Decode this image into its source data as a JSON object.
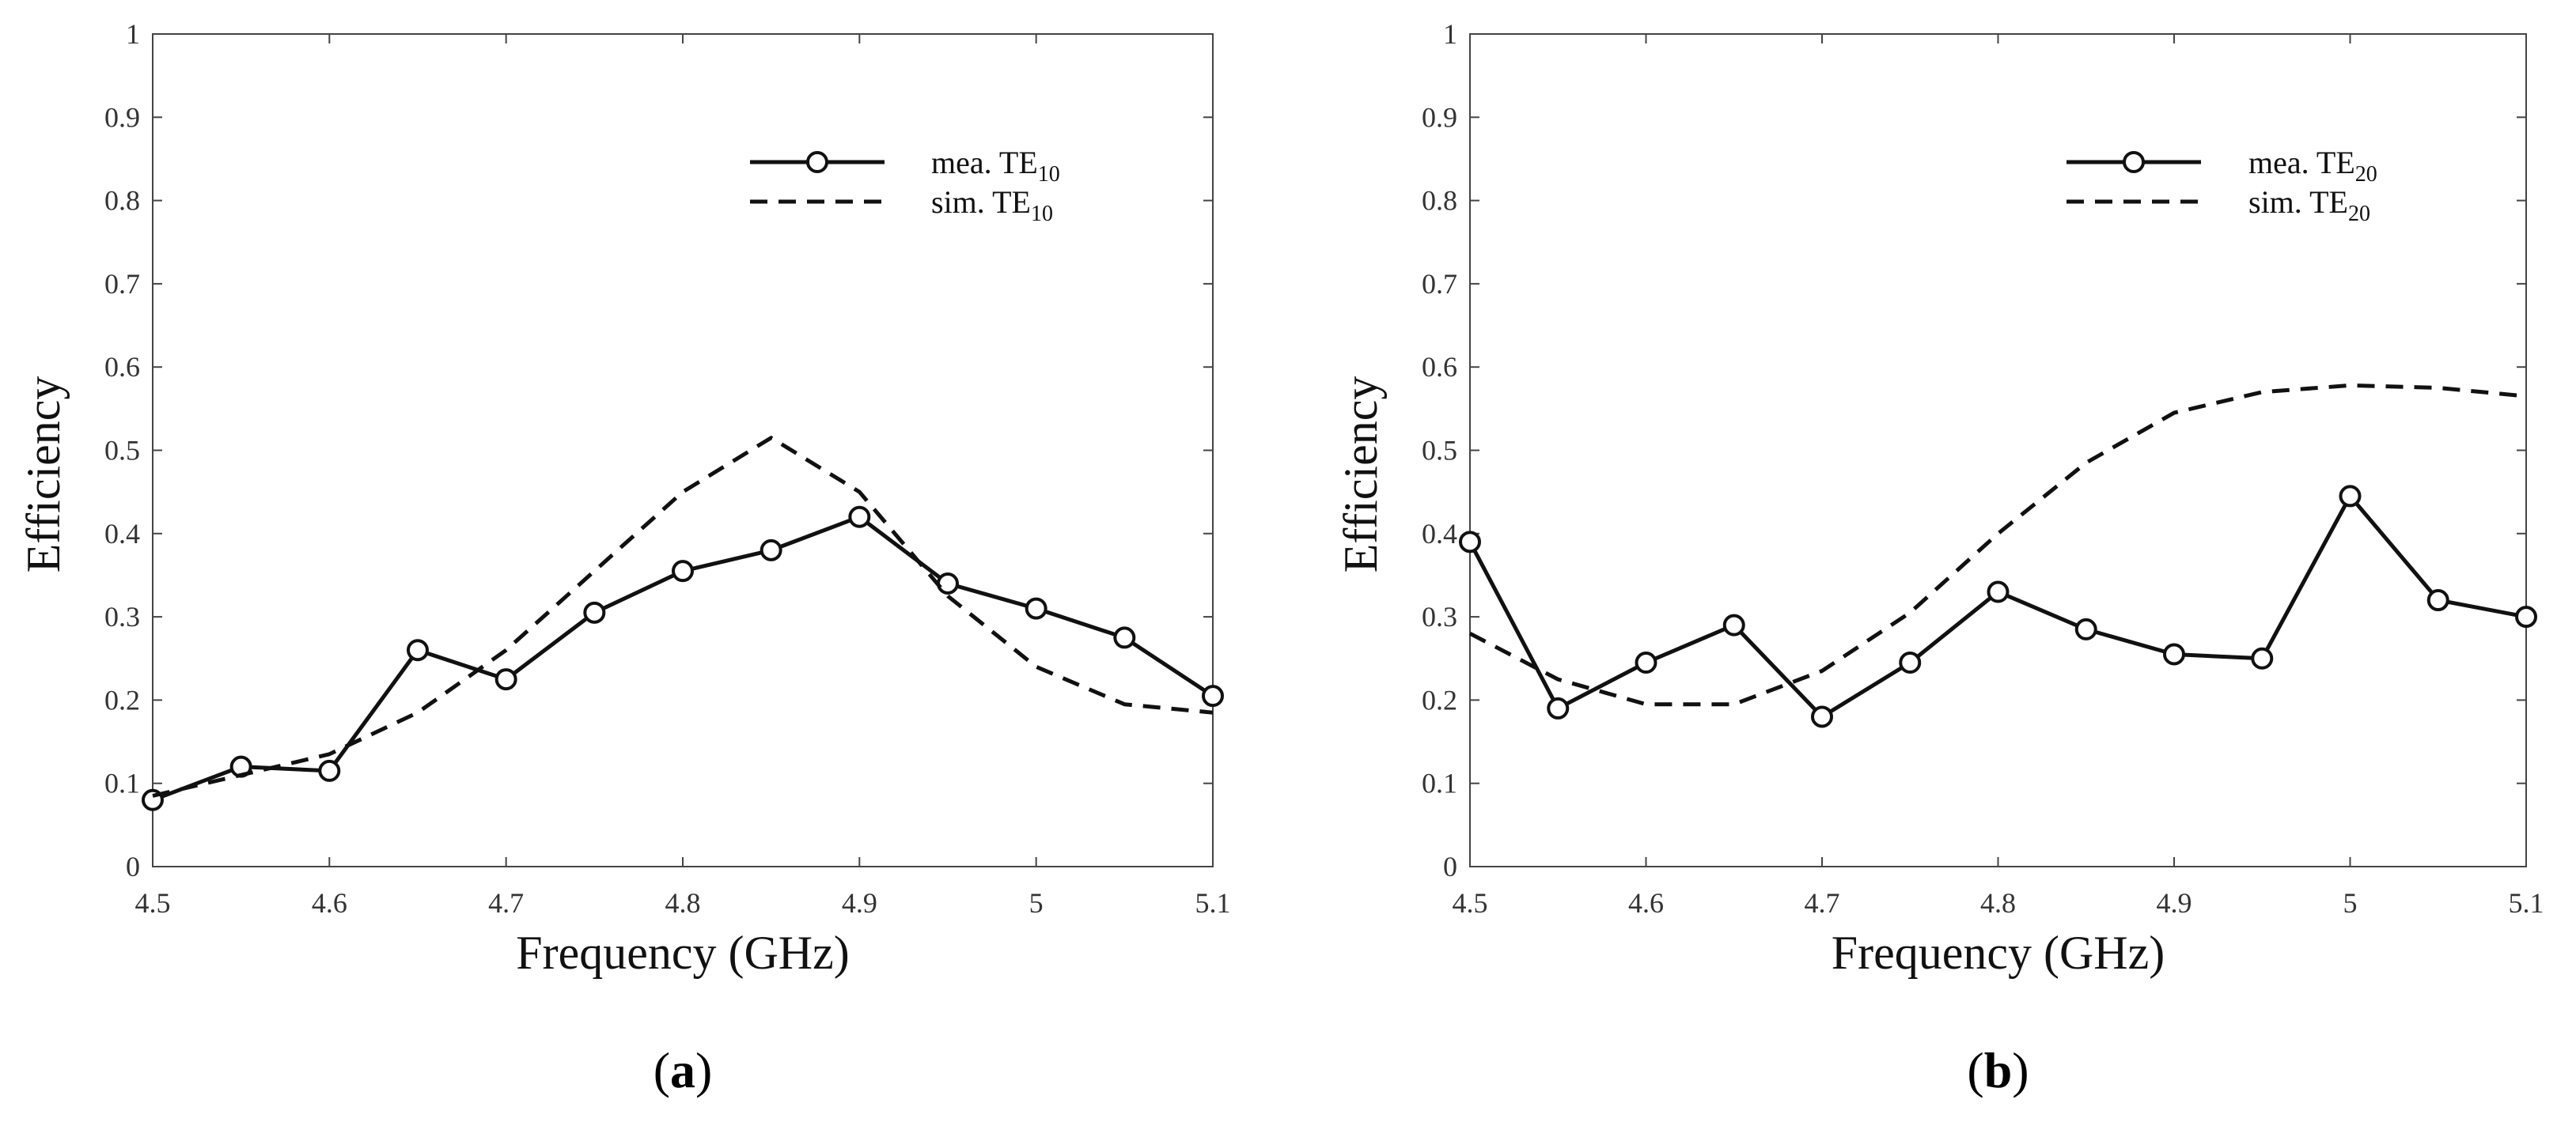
{
  "chart_data": [
    {
      "type": "line",
      "panel_label": "a",
      "xlabel": "Frequency (GHz)",
      "ylabel": "Efficiency",
      "xlim": [
        4.5,
        5.1
      ],
      "ylim": [
        0,
        1
      ],
      "xticks": [
        4.5,
        4.6,
        4.7,
        4.8,
        4.9,
        5,
        5.1
      ],
      "xtick_labels": [
        "4.5",
        "4.6",
        "4.7",
        "4.8",
        "4.9",
        "5",
        "5.1"
      ],
      "yticks": [
        0,
        0.1,
        0.2,
        0.3,
        0.4,
        0.5,
        0.6,
        0.7,
        0.8,
        0.9,
        1
      ],
      "ytick_labels": [
        "0",
        "0.1",
        "0.2",
        "0.3",
        "0.4",
        "0.5",
        "0.6",
        "0.7",
        "0.8",
        "0.9",
        "1"
      ],
      "legend_position": "top-right",
      "series": [
        {
          "name": "mea. TE10",
          "label_main": "mea. TE",
          "label_sub": "10",
          "style": "solid-circle",
          "x": [
            4.5,
            4.55,
            4.6,
            4.65,
            4.7,
            4.75,
            4.8,
            4.85,
            4.9,
            4.95,
            5.0,
            5.05,
            5.1
          ],
          "y": [
            0.08,
            0.12,
            0.115,
            0.26,
            0.225,
            0.305,
            0.355,
            0.38,
            0.42,
            0.34,
            0.31,
            0.275,
            0.205
          ]
        },
        {
          "name": "sim. TE10",
          "label_main": "sim. TE",
          "label_sub": "10",
          "style": "dashed",
          "x": [
            4.5,
            4.55,
            4.6,
            4.65,
            4.7,
            4.75,
            4.8,
            4.85,
            4.9,
            4.95,
            5.0,
            5.05,
            5.1
          ],
          "y": [
            0.085,
            0.11,
            0.135,
            0.185,
            0.26,
            0.355,
            0.45,
            0.515,
            0.45,
            0.325,
            0.24,
            0.195,
            0.185
          ]
        }
      ]
    },
    {
      "type": "line",
      "panel_label": "b",
      "xlabel": "Frequency (GHz)",
      "ylabel": "Efficiency",
      "xlim": [
        4.5,
        5.1
      ],
      "ylim": [
        0,
        1
      ],
      "xticks": [
        4.5,
        4.6,
        4.7,
        4.8,
        4.9,
        5,
        5.1
      ],
      "xtick_labels": [
        "4.5",
        "4.6",
        "4.7",
        "4.8",
        "4.9",
        "5",
        "5.1"
      ],
      "yticks": [
        0,
        0.1,
        0.2,
        0.3,
        0.4,
        0.5,
        0.6,
        0.7,
        0.8,
        0.9,
        1
      ],
      "ytick_labels": [
        "0",
        "0.1",
        "0.2",
        "0.3",
        "0.4",
        "0.5",
        "0.6",
        "0.7",
        "0.8",
        "0.9",
        "1"
      ],
      "legend_position": "top-right",
      "series": [
        {
          "name": "mea. TE20",
          "label_main": "mea. TE",
          "label_sub": "20",
          "style": "solid-circle",
          "x": [
            4.5,
            4.55,
            4.6,
            4.65,
            4.7,
            4.75,
            4.8,
            4.85,
            4.9,
            4.95,
            5.0,
            5.05,
            5.1
          ],
          "y": [
            0.39,
            0.19,
            0.245,
            0.29,
            0.18,
            0.245,
            0.33,
            0.285,
            0.255,
            0.25,
            0.445,
            0.32,
            0.3
          ]
        },
        {
          "name": "sim. TE20",
          "label_main": "sim. TE",
          "label_sub": "20",
          "style": "dashed",
          "x": [
            4.5,
            4.55,
            4.6,
            4.65,
            4.7,
            4.75,
            4.8,
            4.85,
            4.9,
            4.95,
            5.0,
            5.05,
            5.1
          ],
          "y": [
            0.28,
            0.225,
            0.195,
            0.195,
            0.235,
            0.305,
            0.4,
            0.485,
            0.545,
            0.57,
            0.578,
            0.575,
            0.565
          ]
        }
      ]
    }
  ]
}
